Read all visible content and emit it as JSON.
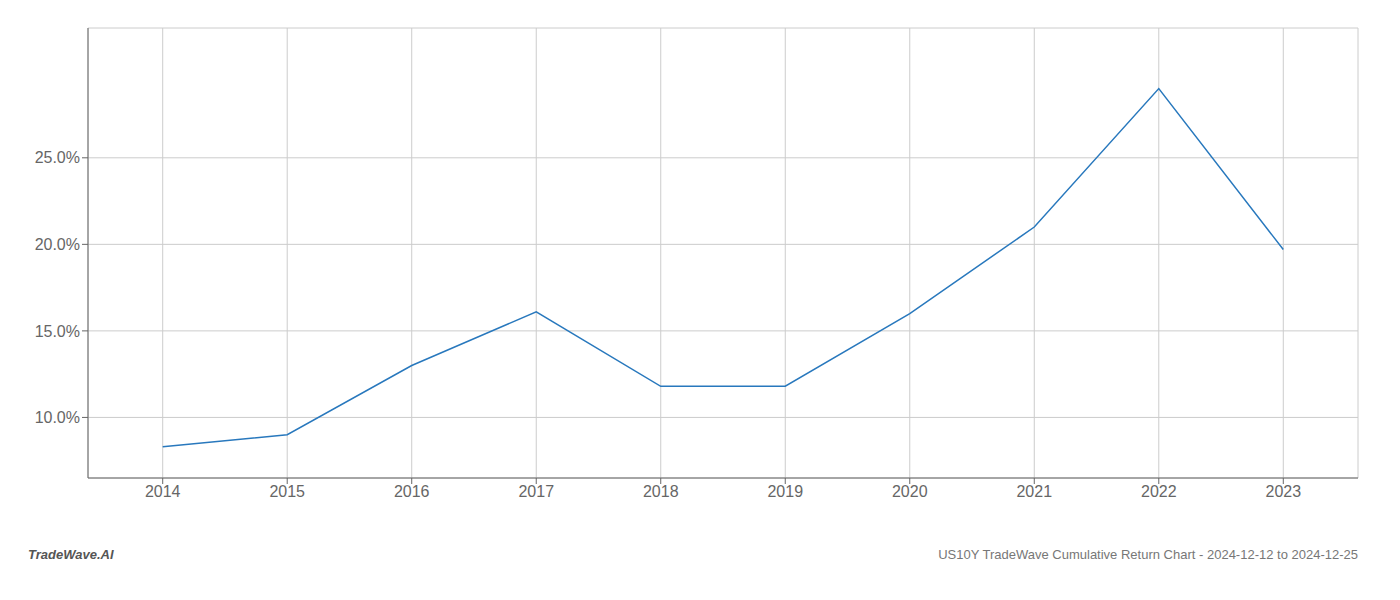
{
  "chart_data": {
    "type": "line",
    "title": "US10Y TradeWave Cumulative Return Chart - 2024-12-12 to 2024-12-25",
    "annotations": [
      "TradeWave.AI"
    ],
    "x": [
      2014,
      2015,
      2016,
      2017,
      2018,
      2019,
      2020,
      2021,
      2022,
      2023
    ],
    "values": [
      8.3,
      9.0,
      13.0,
      16.1,
      11.8,
      11.8,
      16.0,
      21.0,
      29.0,
      19.7
    ],
    "color": "#2878bd",
    "xlim": [
      2013.4,
      2023.6
    ],
    "xticks": [
      2014,
      2015,
      2016,
      2017,
      2018,
      2019,
      2020,
      2021,
      2022,
      2023
    ],
    "ylim": [
      6.5,
      32.5
    ],
    "yticks": [
      {
        "value": 10.0,
        "label": "10.0%"
      },
      {
        "value": 15.0,
        "label": "15.0%"
      },
      {
        "value": 20.0,
        "label": "20.0%"
      },
      {
        "value": 25.0,
        "label": "25.0%"
      }
    ],
    "grid": true
  }
}
